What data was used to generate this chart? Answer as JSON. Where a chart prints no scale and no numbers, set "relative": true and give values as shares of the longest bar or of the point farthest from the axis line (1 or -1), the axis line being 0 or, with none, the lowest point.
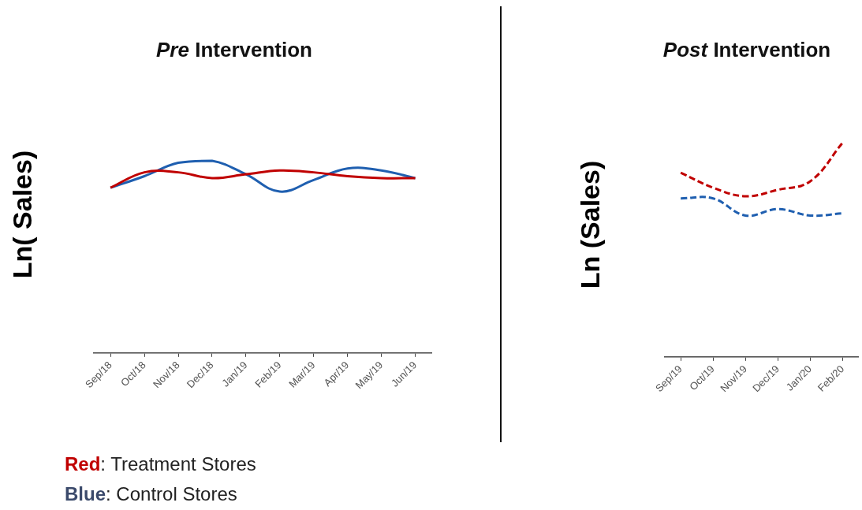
{
  "chart_data": [
    {
      "type": "line",
      "title": "Pre Intervention",
      "ylabel": "Ln( Sales)",
      "relative": true,
      "tick_labels": "x",
      "line_style": "solid",
      "categories": [
        "Sep/18",
        "Oct/18",
        "Nov/18",
        "Dec/18",
        "Jan/19",
        "Feb/19",
        "Mar/19",
        "Apr/19",
        "May/19",
        "Jun/19"
      ],
      "series": [
        {
          "color": "#c00000",
          "values": [
            0.86,
            0.94,
            0.94,
            0.91,
            0.93,
            0.95,
            0.94,
            0.92,
            0.91,
            0.91
          ]
        },
        {
          "color": "#1f5fb0",
          "values": [
            0.86,
            0.92,
            0.99,
            1,
            0.93,
            0.84,
            0.9,
            0.96,
            0.95,
            0.91
          ]
        }
      ],
      "annotations": [
        "Red: Treatment Stores",
        "Blue: Control Stores"
      ]
    },
    {
      "type": "line",
      "title": "Post Intervention",
      "ylabel": "Ln (Sales)",
      "relative": true,
      "tick_labels": "x",
      "line_style": "dashed",
      "categories": [
        "Sep/19",
        "Oct/19",
        "Nov/19",
        "Dec/19",
        "Jan/20",
        "Feb/20"
      ],
      "series": [
        {
          "color": "#c00000",
          "values": [
            0.86,
            0.79,
            0.75,
            0.78,
            0.82,
            1
          ]
        },
        {
          "color": "#1f5fb0",
          "values": [
            0.74,
            0.74,
            0.66,
            0.69,
            0.66,
            0.67
          ]
        }
      ]
    }
  ]
}
